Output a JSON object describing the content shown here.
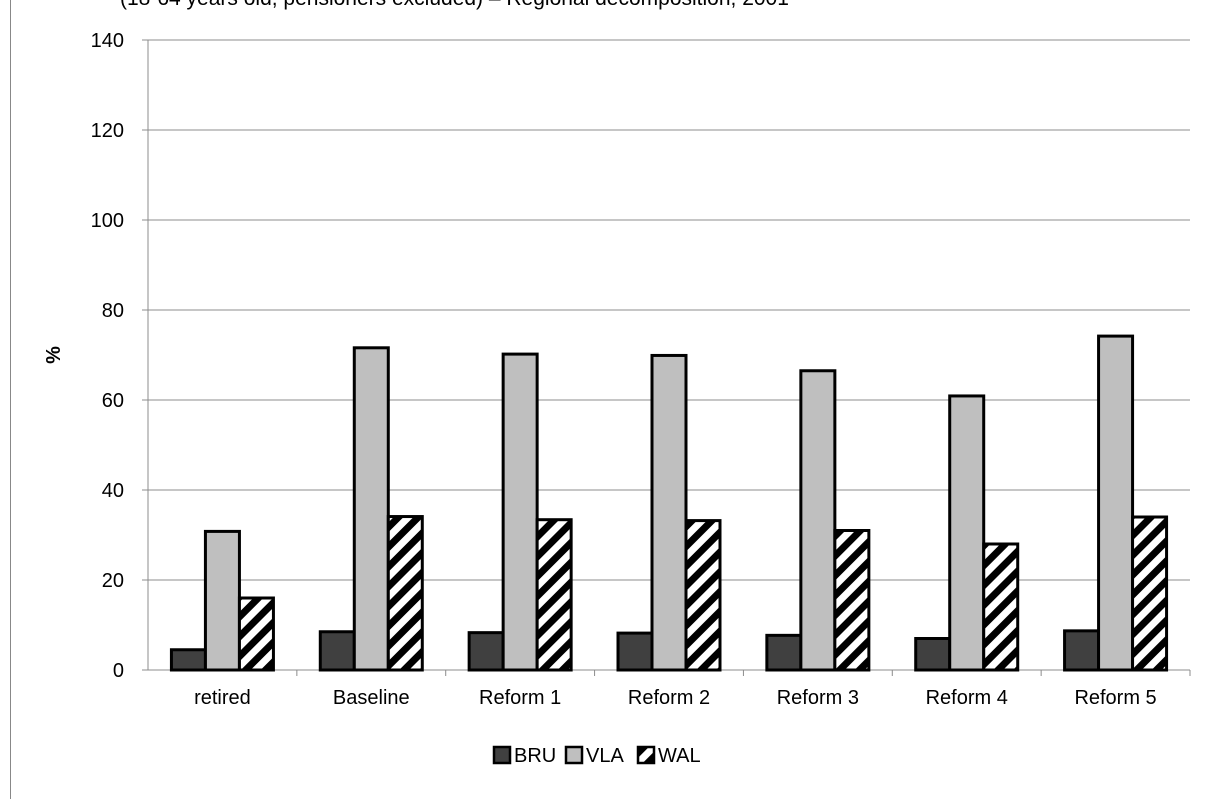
{
  "chart_data": {
    "type": "bar",
    "subtitle": "(18-64 years old, pensioners excluded) – Regional decomposition, 2001",
    "xlabel": "",
    "ylabel": "%",
    "ylim": [
      0,
      140
    ],
    "yticks": [
      0,
      20,
      40,
      60,
      80,
      100,
      120,
      140
    ],
    "grid": true,
    "legend_position": "bottom",
    "categories": [
      "retired",
      "Baseline",
      "Reform 1",
      "Reform 2",
      "Reform 3",
      "Reform 4",
      "Reform 5"
    ],
    "series": [
      {
        "name": "BRU",
        "values": [
          4.5,
          8.5,
          8.3,
          8.2,
          7.7,
          7.0,
          8.7
        ],
        "color": "#404040",
        "pattern": "solid"
      },
      {
        "name": "VLA",
        "values": [
          30.8,
          71.6,
          70.2,
          69.9,
          66.5,
          60.9,
          74.2
        ],
        "color": "#bfbfbf",
        "pattern": "solid"
      },
      {
        "name": "WAL",
        "values": [
          16.0,
          34.1,
          33.4,
          33.2,
          31.0,
          28.0,
          34.0
        ],
        "color": "#000000",
        "pattern": "diagonal-stripes"
      }
    ]
  }
}
